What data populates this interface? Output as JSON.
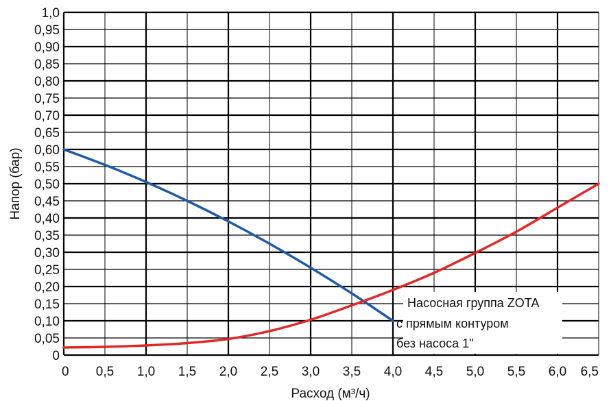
{
  "chart_data": {
    "type": "line",
    "xlabel": "Расход (м³/ч)",
    "ylabel": "Напор (бар)",
    "xlim": [
      0,
      6.5
    ],
    "ylim": [
      0,
      1.0
    ],
    "x_ticks": [
      "0",
      "0,5",
      "1,0",
      "1,5",
      "2,0",
      "2,5",
      "3,0",
      "3,5",
      "4,0",
      "4,5",
      "5,0",
      "5,5",
      "6,0",
      "6,5"
    ],
    "y_ticks": [
      "0",
      "0,05",
      "0,10",
      "0,15",
      "0,20",
      "0,25",
      "0,30",
      "0,35",
      "0,40",
      "0,45",
      "0,50",
      "0,55",
      "0,60",
      "0,65",
      "0,70",
      "0,75",
      "0,80",
      "0,85",
      "0,90",
      "0,95",
      "1,0"
    ],
    "grid": true,
    "series": [
      {
        "color": "#1f5aa6",
        "x": [
          0,
          0.5,
          1.0,
          1.5,
          2.0,
          2.5,
          3.0,
          3.5,
          4.0
        ],
        "y": [
          0.6,
          0.555,
          0.505,
          0.45,
          0.39,
          0.325,
          0.255,
          0.18,
          0.1
        ]
      },
      {
        "color": "#e02828",
        "x": [
          0,
          0.5,
          1.0,
          1.5,
          2.0,
          2.5,
          3.0,
          3.5,
          4.0,
          4.5,
          5.0,
          5.5,
          6.0,
          6.5
        ],
        "y": [
          0.022,
          0.024,
          0.028,
          0.035,
          0.047,
          0.07,
          0.103,
          0.145,
          0.19,
          0.24,
          0.298,
          0.36,
          0.43,
          0.5
        ]
      }
    ],
    "annotation": {
      "lines": [
        "Насосная группа ZOTA",
        "с прямым контуром",
        "без насоса 1\""
      ]
    }
  }
}
